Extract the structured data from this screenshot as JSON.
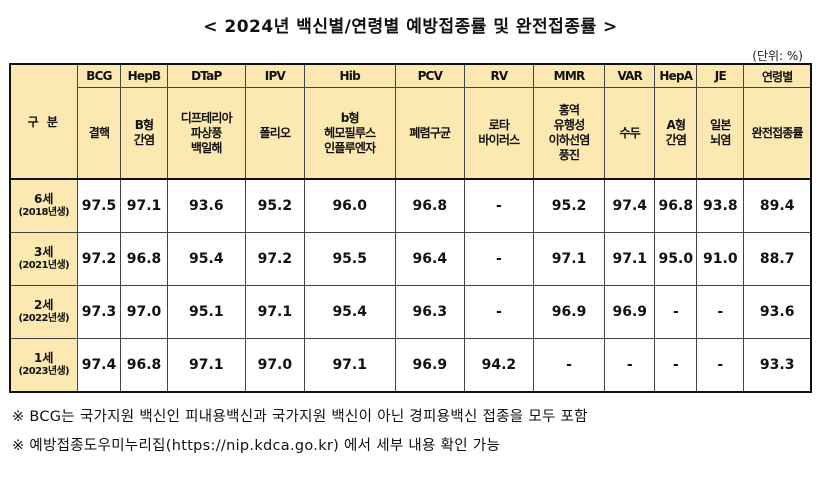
{
  "title": "< 2024년 백신별/연령별 예방접종률 및 완전접종률 >",
  "unit": "(단위: %)",
  "table": {
    "corner": "구 분",
    "columns": [
      {
        "code": "BCG",
        "name": [
          "결핵"
        ]
      },
      {
        "code": "HepB",
        "name": [
          "B형",
          "간염"
        ]
      },
      {
        "code": "DTaP",
        "name": [
          "디프테리아",
          "파상풍",
          "백일해"
        ]
      },
      {
        "code": "IPV",
        "name": [
          "폴리오"
        ]
      },
      {
        "code": "Hib",
        "name": [
          "b형",
          "헤모필루스",
          "인플루엔자"
        ]
      },
      {
        "code": "PCV",
        "name": [
          "폐렴구균"
        ]
      },
      {
        "code": "RV",
        "name": [
          "로타",
          "바이러스"
        ]
      },
      {
        "code": "MMR",
        "name": [
          "홍역",
          "유행성",
          "이하선염",
          "풍진"
        ]
      },
      {
        "code": "VAR",
        "name": [
          "수두"
        ]
      },
      {
        "code": "HepA",
        "name": [
          "A형",
          "간염"
        ]
      },
      {
        "code": "JE",
        "name": [
          "일본",
          "뇌염"
        ]
      },
      {
        "code": "연령별",
        "name": [
          "완전접종률"
        ]
      }
    ],
    "rows": [
      {
        "age": "6세",
        "year": "(2018년생)",
        "values": [
          "97.5",
          "97.1",
          "93.6",
          "95.2",
          "96.0",
          "96.8",
          "-",
          "95.2",
          "97.4",
          "96.8",
          "93.8",
          "89.4"
        ]
      },
      {
        "age": "3세",
        "year": "(2021년생)",
        "values": [
          "97.2",
          "96.8",
          "95.4",
          "97.2",
          "95.5",
          "96.4",
          "-",
          "97.1",
          "97.1",
          "95.0",
          "91.0",
          "88.7"
        ]
      },
      {
        "age": "2세",
        "year": "(2022년생)",
        "values": [
          "97.3",
          "97.0",
          "95.1",
          "97.1",
          "95.4",
          "96.3",
          "-",
          "96.9",
          "96.9",
          "-",
          "-",
          "93.6"
        ]
      },
      {
        "age": "1세",
        "year": "(2023년생)",
        "values": [
          "97.4",
          "96.8",
          "97.1",
          "97.0",
          "97.1",
          "96.9",
          "94.2",
          "-",
          "-",
          "-",
          "-",
          "93.3"
        ]
      }
    ]
  },
  "notes": [
    "※ BCG는 국가지원 백신인 피내용백신과 국가지원 백신이 아닌 경피용백신 접종을 모두 포함",
    "※ 예방접종도우미누리집(https://nip.kdca.go.kr) 에서 세부 내용 확인 가능"
  ]
}
